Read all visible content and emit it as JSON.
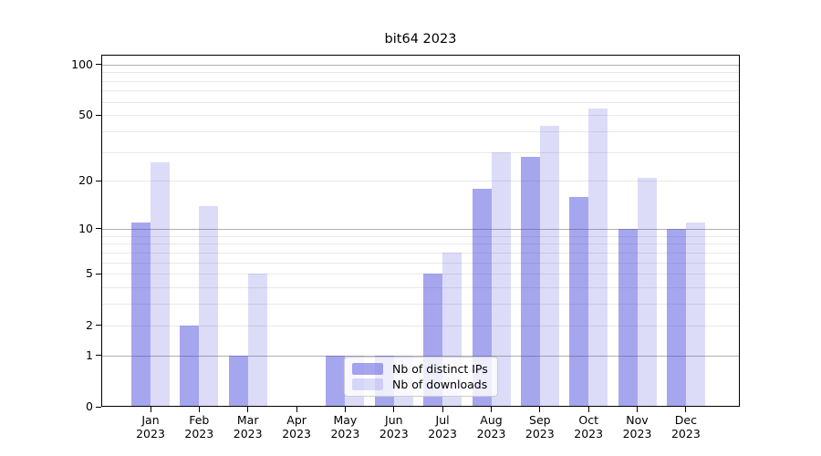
{
  "chart_data": {
    "type": "bar",
    "title": "bit64 2023",
    "categories": [
      "Jan",
      "Feb",
      "Mar",
      "Apr",
      "May",
      "Jun",
      "Jul",
      "Aug",
      "Sep",
      "Oct",
      "Nov",
      "Dec"
    ],
    "year_label": "2023",
    "series": [
      {
        "name": "Nb of distinct IPs",
        "color": "rgba(68,68,221,0.48)",
        "values": [
          11,
          2,
          1,
          0,
          1,
          1,
          5,
          18,
          28,
          16,
          10,
          10
        ]
      },
      {
        "name": "Nb of downloads",
        "color": "rgba(68,68,221,0.19)",
        "values": [
          26,
          14,
          5,
          0,
          1,
          1,
          7,
          30,
          43,
          55,
          21,
          11
        ]
      }
    ],
    "yscale": "log1p",
    "ylim": [
      0,
      114
    ],
    "yticks": [
      0,
      1,
      2,
      5,
      10,
      20,
      50,
      100
    ],
    "xlabel": "",
    "ylabel": "",
    "grid": {
      "major_values": [
        1,
        10,
        100
      ],
      "minor_values": [
        2,
        3,
        4,
        5,
        6,
        7,
        8,
        9,
        20,
        30,
        40,
        50,
        60,
        70,
        80,
        90
      ],
      "major_color": "#b0b0b0",
      "minor_color": "#e8e8e8"
    },
    "legend_position": "lower center",
    "axis_color": "#000000",
    "background_color": "#ffffff"
  }
}
